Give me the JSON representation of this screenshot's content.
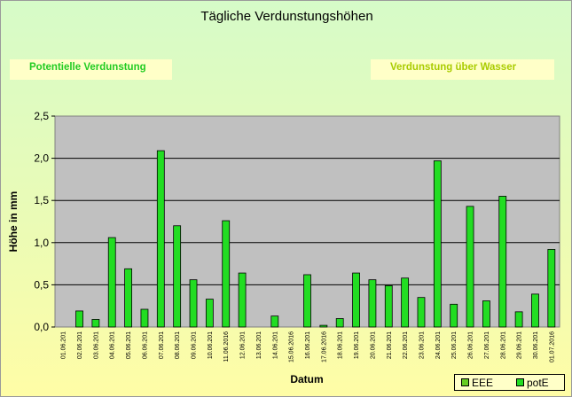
{
  "title": "Tägliche Verdunstungshöhen",
  "buttons": {
    "potentielle": "Potentielle Verdunstung",
    "wasser": "Verdunstung über Wasser"
  },
  "colors": {
    "potE": "#22dd22",
    "EEE": "#66cc22",
    "plot_bg": "#c0c0c0"
  },
  "legend": [
    {
      "name": "EEE",
      "color": "#66cc22"
    },
    {
      "name": "potE",
      "color": "#22dd22"
    }
  ],
  "chart_data": {
    "type": "bar",
    "title": "Tägliche Verdunstungshöhen",
    "xlabel": "Datum",
    "ylabel": "Höhe in mm",
    "ylim": [
      0,
      2.5
    ],
    "yticks": [
      "0,0",
      "0,5",
      "1,0",
      "1,5",
      "2,0",
      "2,5"
    ],
    "grid": true,
    "legend_position": "bottom-right",
    "categories": [
      "01.06.201",
      "02.06.201",
      "03.06.201",
      "04.06.201",
      "05.06.201",
      "06.06.201",
      "07.06.201",
      "08.06.201",
      "09.06.201",
      "10.06.201",
      "11.06.2016",
      "12.06.201",
      "13.06.201",
      "14.06.201",
      "15.06.2016",
      "16.06.201",
      "17.06.2016",
      "18.06.201",
      "19.06.201",
      "20.06.201",
      "21.06.201",
      "22.06.201",
      "23.06.201",
      "24.06.201",
      "25.06.201",
      "26.06.201",
      "27.06.201",
      "28.06.201",
      "29.06.201",
      "30.06.201",
      "01.07.2016"
    ],
    "series": [
      {
        "name": "EEE",
        "values": [
          0,
          0,
          0,
          0,
          0,
          0,
          0,
          0,
          0,
          0,
          0,
          0,
          0,
          0,
          0,
          0,
          0,
          0,
          0,
          0,
          0,
          0,
          0,
          0,
          0,
          0,
          0,
          0,
          0,
          0,
          0
        ]
      },
      {
        "name": "potE",
        "values": [
          0,
          0.19,
          0.09,
          1.06,
          0.69,
          0.21,
          2.09,
          1.2,
          0.56,
          0.33,
          1.26,
          0.64,
          0,
          0.13,
          0,
          0.62,
          0.02,
          0.1,
          0.64,
          0.56,
          0.49,
          0.58,
          0.35,
          1.97,
          0.27,
          1.43,
          0.31,
          1.55,
          0.18,
          0.39,
          0.92
        ]
      }
    ]
  }
}
